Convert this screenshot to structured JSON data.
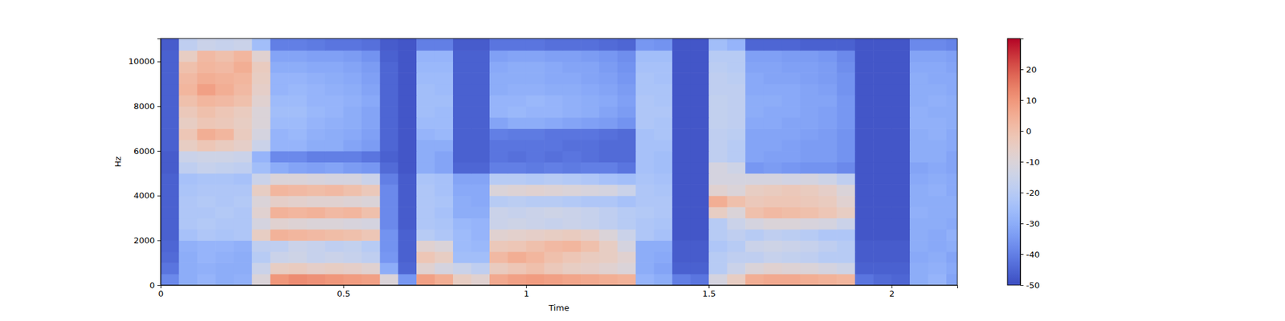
{
  "chart_data": {
    "type": "heatmap",
    "x_label": "Time",
    "y_label": "Hz",
    "color": "coolwarm",
    "xlim": [
      0,
      2.18
    ],
    "ylim": [
      0,
      11025
    ],
    "xticks": [
      0,
      0.5,
      1,
      1.5,
      2
    ],
    "yticks": [
      0,
      2000,
      4000,
      6000,
      8000,
      10000
    ],
    "x": [
      0,
      0.05,
      0.1,
      0.15,
      0.2,
      0.25,
      0.3,
      0.35,
      0.4,
      0.45,
      0.5,
      0.55,
      0.6,
      0.65,
      0.7,
      0.75,
      0.8,
      0.85,
      0.9,
      0.95,
      1,
      1.05,
      1.1,
      1.15,
      1.2,
      1.25,
      1.3,
      1.35,
      1.4,
      1.45,
      1.5,
      1.55,
      1.6,
      1.65,
      1.7,
      1.75,
      1.8,
      1.85,
      1.9,
      1.95,
      2,
      2.05,
      2.1,
      2.15
    ],
    "y": [
      0,
      500,
      1000,
      1500,
      2000,
      2500,
      3000,
      3500,
      4000,
      4500,
      5000,
      5500,
      6000,
      6500,
      7000,
      7500,
      8000,
      8500,
      9000,
      9500,
      10000,
      10500
    ],
    "z": [
      [
        -38,
        -30,
        -28,
        -30,
        -29,
        -10,
        10,
        12,
        11,
        10,
        9,
        8,
        -10,
        -35,
        8,
        5,
        -5,
        -8,
        6,
        8,
        9,
        8,
        7,
        6,
        5,
        4,
        -28,
        -30,
        -40,
        -42,
        -12,
        -5,
        5,
        6,
        6,
        5,
        4,
        3,
        -42,
        -44,
        -45,
        -30,
        -28,
        -32
      ],
      [
        -42,
        -30,
        -29,
        -30,
        -30,
        -15,
        -5,
        -4,
        -6,
        -5,
        -6,
        -8,
        -30,
        -45,
        -8,
        -12,
        -15,
        -18,
        -4,
        -2,
        0,
        -3,
        -5,
        -6,
        -8,
        -10,
        -30,
        -32,
        -46,
        -46,
        -20,
        -15,
        -10,
        -8,
        -9,
        -10,
        -12,
        -14,
        -46,
        -46,
        -46,
        -30,
        -29,
        -31
      ],
      [
        -44,
        -30,
        -28,
        -29,
        -30,
        -20,
        -15,
        -14,
        -16,
        -15,
        -16,
        -18,
        -35,
        -46,
        -2,
        -5,
        -25,
        -25,
        2,
        5,
        3,
        0,
        -2,
        -4,
        -5,
        -8,
        -30,
        -31,
        -47,
        -47,
        -20,
        -18,
        -18,
        -16,
        -17,
        -18,
        -20,
        -20,
        -47,
        -47,
        -47,
        -31,
        -30,
        -32
      ],
      [
        -45,
        -29,
        -28,
        -28,
        -29,
        -18,
        -18,
        -15,
        -16,
        -18,
        -17,
        -20,
        -36,
        -46,
        -8,
        -10,
        -26,
        -27,
        -3,
        -2,
        0,
        2,
        3,
        0,
        -5,
        -12,
        -30,
        -30,
        -47,
        -47,
        -22,
        -20,
        -15,
        -14,
        -15,
        -16,
        -18,
        -20,
        -47,
        -47,
        -47,
        -30,
        -31,
        -30
      ],
      [
        -46,
        -24,
        -22,
        -23,
        -22,
        -5,
        4,
        3,
        2,
        1,
        0,
        -2,
        -36,
        -46,
        -20,
        -22,
        -26,
        -28,
        -8,
        -7,
        -6,
        -5,
        -4,
        -6,
        -10,
        -15,
        -22,
        -24,
        -48,
        -48,
        -20,
        -18,
        -20,
        -18,
        -19,
        -20,
        -22,
        -22,
        -48,
        -48,
        -48,
        -30,
        -31,
        -29
      ],
      [
        -46,
        -22,
        -21,
        -22,
        -22,
        -12,
        -8,
        -9,
        -10,
        -10,
        -11,
        -12,
        -38,
        -47,
        -22,
        -23,
        -27,
        -28,
        -15,
        -14,
        -15,
        -16,
        -15,
        -16,
        -18,
        -20,
        -22,
        -23,
        -48,
        -48,
        -20,
        -15,
        -12,
        -10,
        -10,
        -11,
        -12,
        -15,
        -48,
        -48,
        -48,
        -30,
        -30,
        -31
      ],
      [
        -46,
        -22,
        -22,
        -21,
        -22,
        -8,
        4,
        3,
        4,
        2,
        3,
        0,
        -38,
        -47,
        -22,
        -24,
        -30,
        -30,
        -15,
        -16,
        -15,
        -14,
        -15,
        -16,
        -18,
        -20,
        -21,
        -22,
        -48,
        -48,
        -5,
        -10,
        0,
        2,
        1,
        0,
        -2,
        -5,
        -48,
        -48,
        -48,
        -29,
        -30,
        -30
      ],
      [
        -46,
        -22,
        -21,
        -22,
        -21,
        -10,
        -6,
        -7,
        -8,
        -8,
        -9,
        -10,
        -38,
        -47,
        -22,
        -23,
        -30,
        -31,
        -20,
        -19,
        -20,
        -20,
        -21,
        -22,
        -22,
        -24,
        -22,
        -22,
        -48,
        -48,
        5,
        0,
        -3,
        -2,
        -2,
        -3,
        -4,
        -8,
        -48,
        -48,
        -48,
        -30,
        -30,
        -30
      ],
      [
        -46,
        -23,
        -22,
        -22,
        -22,
        -5,
        3,
        2,
        1,
        2,
        0,
        -3,
        -38,
        -47,
        -22,
        -24,
        -31,
        -31,
        -10,
        -9,
        -8,
        -9,
        -10,
        -11,
        -12,
        -15,
        -22,
        -23,
        -48,
        -48,
        -8,
        -10,
        -5,
        -4,
        -3,
        -4,
        -6,
        -10,
        -48,
        -48,
        -48,
        -30,
        -29,
        -31
      ],
      [
        -46,
        -24,
        -23,
        -23,
        -24,
        -15,
        -10,
        -10,
        -11,
        -12,
        -12,
        -15,
        -40,
        -47,
        -23,
        -24,
        -32,
        -32,
        -20,
        -20,
        -21,
        -20,
        -21,
        -22,
        -24,
        -25,
        -23,
        -24,
        -48,
        -48,
        -12,
        -12,
        -12,
        -12,
        -13,
        -12,
        -14,
        -18,
        -48,
        -48,
        -48,
        -31,
        -30,
        -31
      ],
      [
        -47,
        -18,
        -16,
        -17,
        -18,
        -25,
        -30,
        -32,
        -33,
        -32,
        -34,
        -35,
        -44,
        -48,
        -30,
        -32,
        -45,
        -45,
        -40,
        -40,
        -41,
        -40,
        -41,
        -40,
        -40,
        -42,
        -24,
        -25,
        -48,
        -48,
        -12,
        -14,
        -35,
        -34,
        -35,
        -36,
        -36,
        -38,
        -48,
        -48,
        -48,
        -32,
        -31,
        -32
      ],
      [
        -47,
        -15,
        -14,
        -14,
        -15,
        -28,
        -38,
        -38,
        -40,
        -40,
        -40,
        -42,
        -46,
        -48,
        -30,
        -32,
        -46,
        -46,
        -42,
        -43,
        -42,
        -43,
        -42,
        -43,
        -44,
        -44,
        -24,
        -25,
        -48,
        -48,
        -18,
        -20,
        -32,
        -33,
        -33,
        -34,
        -34,
        -36,
        -48,
        -48,
        -48,
        -30,
        -30,
        -32
      ],
      [
        -46,
        -5,
        -2,
        -4,
        -6,
        -15,
        -28,
        -28,
        -30,
        -30,
        -32,
        -34,
        -45,
        -48,
        -30,
        -30,
        -46,
        -46,
        -42,
        -42,
        -42,
        -42,
        -43,
        -43,
        -44,
        -44,
        -24,
        -24,
        -48,
        -48,
        -18,
        -20,
        -32,
        -32,
        -33,
        -34,
        -34,
        -36,
        -48,
        -48,
        -48,
        -30,
        -30,
        -31
      ],
      [
        -46,
        -2,
        5,
        3,
        -4,
        -12,
        -28,
        -27,
        -29,
        -30,
        -31,
        -33,
        -45,
        -48,
        -28,
        -27,
        -46,
        -46,
        -40,
        -41,
        -41,
        -42,
        -42,
        -42,
        -43,
        -44,
        -24,
        -23,
        -48,
        -48,
        -18,
        -19,
        -32,
        -32,
        -32,
        -33,
        -34,
        -36,
        -48,
        -48,
        -48,
        -30,
        -29,
        -31
      ],
      [
        -46,
        -5,
        -2,
        -3,
        -5,
        -10,
        -26,
        -26,
        -28,
        -29,
        -30,
        -32,
        -45,
        -48,
        -26,
        -26,
        -46,
        -46,
        -32,
        -30,
        -30,
        -31,
        -32,
        -33,
        -34,
        -36,
        -22,
        -23,
        -48,
        -48,
        -17,
        -18,
        -31,
        -31,
        -32,
        -32,
        -33,
        -35,
        -48,
        -48,
        -48,
        -29,
        -29,
        -30
      ],
      [
        -46,
        -3,
        0,
        -2,
        -4,
        -10,
        -25,
        -25,
        -27,
        -28,
        -30,
        -32,
        -45,
        -48,
        -25,
        -26,
        -46,
        -46,
        -28,
        -27,
        -28,
        -28,
        -29,
        -30,
        -32,
        -34,
        -22,
        -22,
        -48,
        -48,
        -17,
        -18,
        -30,
        -31,
        -31,
        -32,
        -33,
        -35,
        -48,
        -48,
        -48,
        -29,
        -30,
        -30
      ],
      [
        -46,
        0,
        3,
        2,
        0,
        -8,
        -26,
        -26,
        -28,
        -28,
        -29,
        -31,
        -45,
        -48,
        -25,
        -25,
        -46,
        -46,
        -28,
        -28,
        -27,
        -28,
        -29,
        -30,
        -31,
        -33,
        -22,
        -23,
        -48,
        -48,
        -17,
        -18,
        -30,
        -30,
        -31,
        -32,
        -32,
        -35,
        -48,
        -48,
        -48,
        -30,
        -29,
        -30
      ],
      [
        -46,
        3,
        8,
        5,
        2,
        -6,
        -28,
        -27,
        -28,
        -29,
        -30,
        -32,
        -45,
        -48,
        -25,
        -26,
        -46,
        -46,
        -30,
        -29,
        -29,
        -30,
        -30,
        -31,
        -32,
        -34,
        -23,
        -23,
        -48,
        -48,
        -18,
        -18,
        -31,
        -31,
        -31,
        -32,
        -33,
        -36,
        -48,
        -48,
        -48,
        -30,
        -30,
        -31
      ],
      [
        -46,
        2,
        5,
        4,
        3,
        -5,
        -28,
        -28,
        -29,
        -30,
        -31,
        -33,
        -45,
        -48,
        -26,
        -26,
        -46,
        -46,
        -30,
        -30,
        -30,
        -31,
        -31,
        -32,
        -33,
        -35,
        -23,
        -24,
        -48,
        -48,
        -18,
        -19,
        -31,
        -32,
        -32,
        -33,
        -34,
        -36,
        -48,
        -48,
        -48,
        -30,
        -31,
        -31
      ],
      [
        -46,
        0,
        3,
        2,
        5,
        -4,
        -30,
        -30,
        -31,
        -31,
        -32,
        -34,
        -45,
        -48,
        -27,
        -27,
        -46,
        -46,
        -31,
        -30,
        -30,
        -31,
        -32,
        -32,
        -34,
        -36,
        -24,
        -24,
        -48,
        -48,
        -19,
        -20,
        -32,
        -32,
        -33,
        -33,
        -34,
        -37,
        -48,
        -48,
        -48,
        -31,
        -31,
        -32
      ],
      [
        -46,
        -5,
        2,
        0,
        3,
        -8,
        -32,
        -32,
        -33,
        -33,
        -34,
        -36,
        -46,
        -48,
        -28,
        -28,
        -46,
        -46,
        -33,
        -32,
        -32,
        -33,
        -33,
        -34,
        -35,
        -37,
        -25,
        -25,
        -48,
        -48,
        -20,
        -20,
        -33,
        -33,
        -34,
        -34,
        -35,
        -38,
        -48,
        -48,
        -48,
        -32,
        -32,
        -33
      ],
      [
        -47,
        -18,
        -15,
        -16,
        -15,
        -25,
        -40,
        -40,
        -41,
        -42,
        -42,
        -43,
        -47,
        -48,
        -40,
        -40,
        -47,
        -47,
        -42,
        -42,
        -42,
        -43,
        -43,
        -43,
        -44,
        -45,
        -35,
        -36,
        -48,
        -48,
        -25,
        -28,
        -45,
        -45,
        -45,
        -46,
        -46,
        -46,
        -48,
        -48,
        -48,
        -38,
        -38,
        -39
      ]
    ],
    "colorbar": {
      "range": [
        -50,
        30
      ],
      "ticks": [
        -50,
        -40,
        -30,
        -20,
        -10,
        0,
        10,
        20
      ]
    }
  }
}
